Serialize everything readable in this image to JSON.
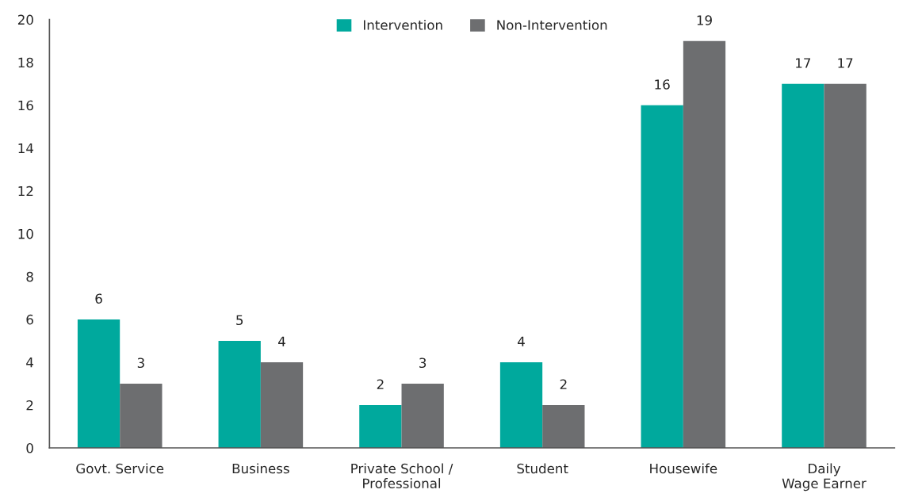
{
  "chart_data": {
    "type": "bar",
    "categories": [
      "Govt. Service",
      "Business",
      "Private School /\nProfessional",
      "Student",
      "Housewife",
      "Daily\nWage Earner"
    ],
    "series": [
      {
        "name": "Intervention",
        "color": "#00a99d",
        "values": [
          6,
          5,
          2,
          4,
          16,
          17
        ]
      },
      {
        "name": "Non-Intervention",
        "color": "#6d6e70",
        "values": [
          3,
          4,
          3,
          2,
          19,
          17
        ]
      }
    ],
    "ylim": [
      0,
      20
    ],
    "yticks": [
      0,
      2,
      4,
      6,
      8,
      10,
      12,
      14,
      16,
      18,
      20
    ],
    "data_labels": true,
    "legend": "top",
    "grid": false
  }
}
